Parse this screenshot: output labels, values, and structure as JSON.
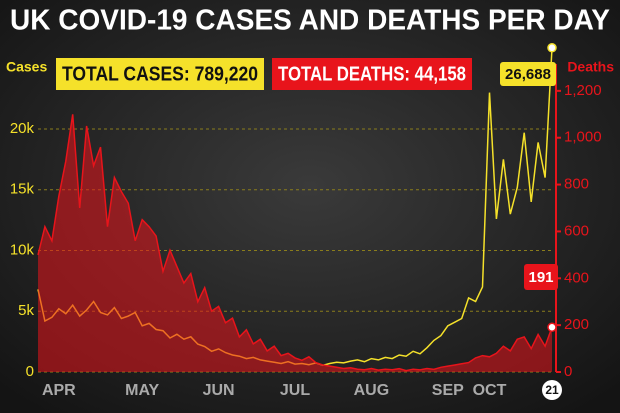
{
  "chart_data": {
    "type": "line",
    "title": "UK COVID-19 CASES AND DEATHS PER DAY",
    "annotations": [
      "TOTAL CASES: 789,220",
      "TOTAL DEATHS: 44,158"
    ],
    "y_label": "Cases",
    "y2_label": "Deaths",
    "categories": [
      null,
      null,
      null,
      "APR",
      null,
      null,
      null,
      null,
      null,
      null,
      null,
      null,
      null,
      null,
      null,
      "MAY",
      null,
      null,
      null,
      null,
      null,
      null,
      null,
      null,
      null,
      null,
      "JUN",
      null,
      null,
      null,
      null,
      null,
      null,
      null,
      null,
      null,
      null,
      "JUL",
      null,
      null,
      null,
      null,
      null,
      null,
      null,
      null,
      null,
      null,
      "AUG",
      null,
      null,
      null,
      null,
      null,
      null,
      null,
      null,
      null,
      null,
      "SEP",
      null,
      null,
      null,
      null,
      null,
      "OCT",
      null,
      null,
      null,
      null,
      null,
      null,
      null,
      null,
      "21"
    ],
    "series": [
      {
        "name": "Cases",
        "color": "#f5e12a",
        "axis": "y",
        "values": [
          6800,
          4200,
          4500,
          5200,
          4800,
          5500,
          4600,
          5100,
          5800,
          4900,
          4700,
          5300,
          4400,
          4600,
          4900,
          3800,
          4000,
          3500,
          3400,
          2800,
          3100,
          2700,
          2900,
          2300,
          2100,
          1700,
          1900,
          1600,
          1400,
          1300,
          1100,
          1200,
          1000,
          900,
          800,
          700,
          850,
          650,
          700,
          600,
          750,
          550,
          700,
          800,
          750,
          900,
          1000,
          850,
          1100,
          1000,
          1200,
          1100,
          1400,
          1300,
          1700,
          1500,
          2000,
          2600,
          3000,
          3800,
          4100,
          4400,
          6100,
          5800,
          7000,
          23000,
          12600,
          17500,
          13000,
          15200,
          19700,
          14000,
          18900,
          16000,
          26688
        ],
        "value_labels": [
          null,
          null,
          null,
          null,
          null,
          null,
          null,
          null,
          null,
          null,
          null,
          null,
          null,
          null,
          null,
          null,
          null,
          null,
          null,
          null,
          null,
          null,
          null,
          null,
          null,
          null,
          null,
          null,
          null,
          null,
          null,
          null,
          null,
          null,
          null,
          null,
          null,
          null,
          null,
          null,
          null,
          null,
          null,
          null,
          null,
          null,
          null,
          null,
          null,
          null,
          null,
          null,
          null,
          null,
          null,
          null,
          null,
          null,
          null,
          null,
          null,
          null,
          null,
          null,
          null,
          null,
          null,
          null,
          null,
          null,
          null,
          null,
          null,
          null,
          "26,688"
        ]
      },
      {
        "name": "Deaths",
        "color": "#e8141b",
        "axis": "y2",
        "values": [
          500,
          620,
          560,
          750,
          900,
          1100,
          700,
          1050,
          880,
          960,
          620,
          830,
          770,
          720,
          560,
          650,
          620,
          580,
          430,
          520,
          450,
          380,
          420,
          300,
          360,
          260,
          280,
          210,
          230,
          150,
          180,
          120,
          140,
          90,
          110,
          70,
          80,
          60,
          50,
          65,
          40,
          30,
          25,
          20,
          15,
          18,
          12,
          10,
          15,
          8,
          12,
          10,
          14,
          6,
          12,
          9,
          15,
          11,
          20,
          25,
          30,
          35,
          40,
          60,
          70,
          65,
          80,
          110,
          90,
          140,
          150,
          100,
          160,
          110,
          191
        ]
      }
    ],
    "ylim": [
      0,
      27000
    ],
    "yticks": [
      0,
      {
        "value": 5000,
        "label": "5k"
      },
      {
        "value": 10000,
        "label": "10k"
      },
      {
        "value": 15000,
        "label": "15k"
      },
      {
        "value": 20000,
        "label": "20k"
      }
    ],
    "y2lim": [
      0,
      1400
    ],
    "y2ticks": [
      0,
      200,
      400,
      600,
      800,
      {
        "value": 1000,
        "label": "1,000"
      },
      {
        "value": 1200,
        "label": "1,200"
      }
    ],
    "grid": true
  }
}
